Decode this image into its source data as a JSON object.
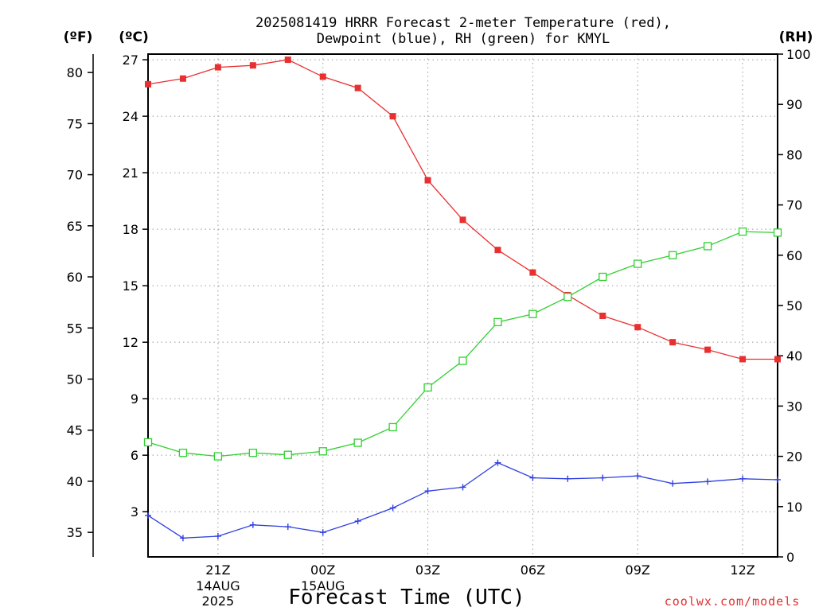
{
  "title_line1": "2025081419 HRRR Forecast 2-meter Temperature (red),",
  "title_line2": "Dewpoint (blue), RH (green) for KMYL",
  "credit": "coolwx.com/models",
  "chart_data": {
    "type": "line",
    "title": "2025081419 HRRR Forecast 2-meter Temperature (red), Dewpoint (blue), RH (green) for KMYL",
    "xlabel": "Forecast Time (UTC)",
    "x": [
      "19Z",
      "20Z",
      "21Z",
      "22Z",
      "23Z",
      "00Z",
      "01Z",
      "02Z",
      "03Z",
      "04Z",
      "05Z",
      "06Z",
      "07Z",
      "08Z",
      "09Z",
      "10Z",
      "11Z",
      "12Z",
      "13Z"
    ],
    "x_ticks": [
      {
        "label": "21Z",
        "sub1": "14AUG",
        "sub2": "2025"
      },
      {
        "label": "00Z",
        "sub1": "15AUG",
        "sub2": ""
      },
      {
        "label": "03Z",
        "sub1": "",
        "sub2": ""
      },
      {
        "label": "06Z",
        "sub1": "",
        "sub2": ""
      },
      {
        "label": "09Z",
        "sub1": "",
        "sub2": ""
      },
      {
        "label": "12Z",
        "sub1": "",
        "sub2": ""
      }
    ],
    "axes": {
      "fahrenheit": {
        "label": "(ºF)",
        "range": [
          32.6,
          81.8
        ],
        "ticks": [
          35,
          40,
          45,
          50,
          55,
          60,
          65,
          70,
          75,
          80
        ]
      },
      "celsius": {
        "label": "(ºC)",
        "range": [
          0.6,
          27.3
        ],
        "ticks": [
          3,
          6,
          9,
          12,
          15,
          18,
          21,
          24,
          27
        ]
      },
      "rh": {
        "label": "(RH)",
        "range": [
          0,
          100
        ],
        "ticks": [
          0,
          10,
          20,
          30,
          40,
          50,
          60,
          70,
          80,
          90,
          100
        ]
      }
    },
    "grid": true,
    "series": [
      {
        "key": "temperature",
        "axis": "celsius",
        "color": "#e83030",
        "marker": "filled-square",
        "values": [
          25.7,
          26.0,
          26.6,
          26.7,
          27.0,
          26.1,
          25.5,
          24.0,
          20.6,
          18.5,
          16.9,
          15.7,
          14.5,
          13.4,
          12.8,
          12.0,
          11.6,
          11.1,
          11.1
        ]
      },
      {
        "key": "dewpoint",
        "axis": "celsius",
        "color": "#3040e0",
        "marker": "plus",
        "values": [
          2.8,
          1.6,
          1.7,
          2.3,
          2.2,
          1.9,
          2.5,
          3.2,
          4.1,
          4.3,
          5.6,
          4.8,
          4.75,
          4.8,
          4.9,
          4.5,
          4.6,
          4.75,
          4.7
        ]
      },
      {
        "key": "rh",
        "axis": "rh",
        "color": "#30d030",
        "marker": "open-square",
        "values": [
          22.8,
          20.7,
          20.0,
          20.7,
          20.3,
          21.0,
          22.7,
          25.8,
          33.7,
          39.0,
          46.7,
          48.3,
          51.7,
          55.7,
          58.3,
          60.0,
          61.8,
          64.7,
          64.5
        ]
      }
    ]
  }
}
